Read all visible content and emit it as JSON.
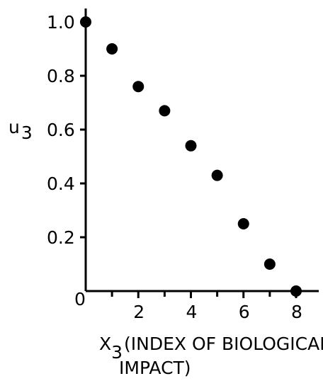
{
  "chart_data": {
    "type": "scatter",
    "ylabel_main": "u",
    "ylabel_sub": "3",
    "xlabel_main": "X",
    "xlabel_sub": "3",
    "xlabel_text_line1": "(INDEX OF BIOLOGICAL",
    "xlabel_text_line2": "IMPACT)",
    "xlim": [
      0,
      8.8
    ],
    "ylim": [
      0,
      1.05
    ],
    "x_ticks": [
      {
        "value": 0,
        "label": "0"
      },
      {
        "value": 2,
        "label": "2"
      },
      {
        "value": 4,
        "label": "4"
      },
      {
        "value": 6,
        "label": "6"
      },
      {
        "value": 8,
        "label": "8"
      }
    ],
    "x_minor_ticks": [
      1,
      3,
      5,
      7
    ],
    "y_ticks": [
      {
        "value": 0.2,
        "label": "0.2"
      },
      {
        "value": 0.4,
        "label": "0.4"
      },
      {
        "value": 0.6,
        "label": "0.6"
      },
      {
        "value": 0.8,
        "label": "0.8"
      },
      {
        "value": 1.0,
        "label": "1.0"
      }
    ],
    "grid": false,
    "points": [
      {
        "x": 0,
        "y": 1.0
      },
      {
        "x": 1,
        "y": 0.9
      },
      {
        "x": 2,
        "y": 0.76
      },
      {
        "x": 3,
        "y": 0.67
      },
      {
        "x": 4,
        "y": 0.54
      },
      {
        "x": 5,
        "y": 0.43
      },
      {
        "x": 6,
        "y": 0.25
      },
      {
        "x": 7,
        "y": 0.1
      },
      {
        "x": 8,
        "y": 0.0
      }
    ]
  }
}
